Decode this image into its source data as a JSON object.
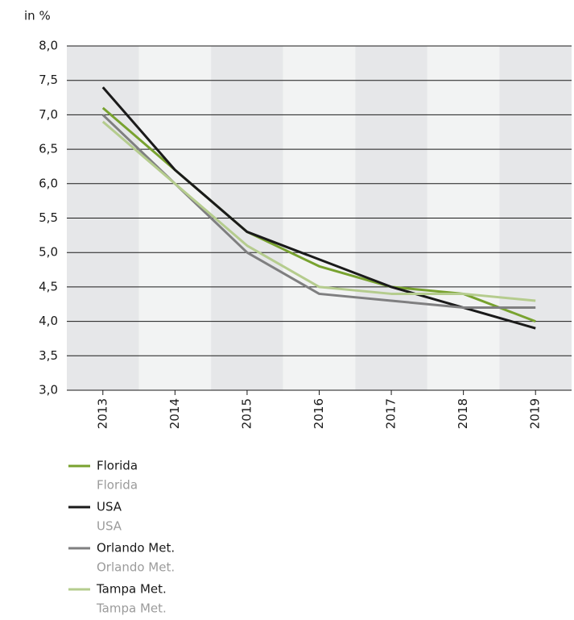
{
  "chart_data": {
    "type": "line",
    "y_label": "in %",
    "categories": [
      "2013",
      "2014",
      "2015",
      "2016",
      "2017",
      "2018",
      "2019"
    ],
    "series": [
      {
        "name": "Florida",
        "color": "#78a22f",
        "values": [
          7.1,
          6.2,
          5.3,
          4.8,
          4.5,
          4.4,
          4.0
        ]
      },
      {
        "name": "USA",
        "color": "#1a1a1a",
        "values": [
          7.4,
          6.2,
          5.3,
          4.9,
          4.5,
          4.2,
          3.9
        ]
      },
      {
        "name": "Orlando Met.",
        "color": "#7f7f80",
        "values": [
          7.0,
          6.0,
          5.0,
          4.4,
          4.3,
          4.2,
          4.2
        ]
      },
      {
        "name": "Tampa Met.",
        "color": "#b5cc8e",
        "values": [
          6.9,
          6.0,
          5.1,
          4.5,
          4.4,
          4.4,
          4.3
        ]
      }
    ],
    "ylim": [
      3,
      8
    ],
    "yticks": [
      {
        "value": 3,
        "label": "3,0"
      },
      {
        "value": 3.5,
        "label": "3,5"
      },
      {
        "value": 4,
        "label": "4,0"
      },
      {
        "value": 4.5,
        "label": "4,5"
      },
      {
        "value": 5,
        "label": "5,0"
      },
      {
        "value": 5.5,
        "label": "5,5"
      },
      {
        "value": 6,
        "label": "6,0"
      },
      {
        "value": 6.5,
        "label": "6,5"
      },
      {
        "value": 7,
        "label": "7,0"
      },
      {
        "value": 7.5,
        "label": "7,5"
      },
      {
        "value": 8,
        "label": "8,0"
      }
    ],
    "grid": true
  }
}
